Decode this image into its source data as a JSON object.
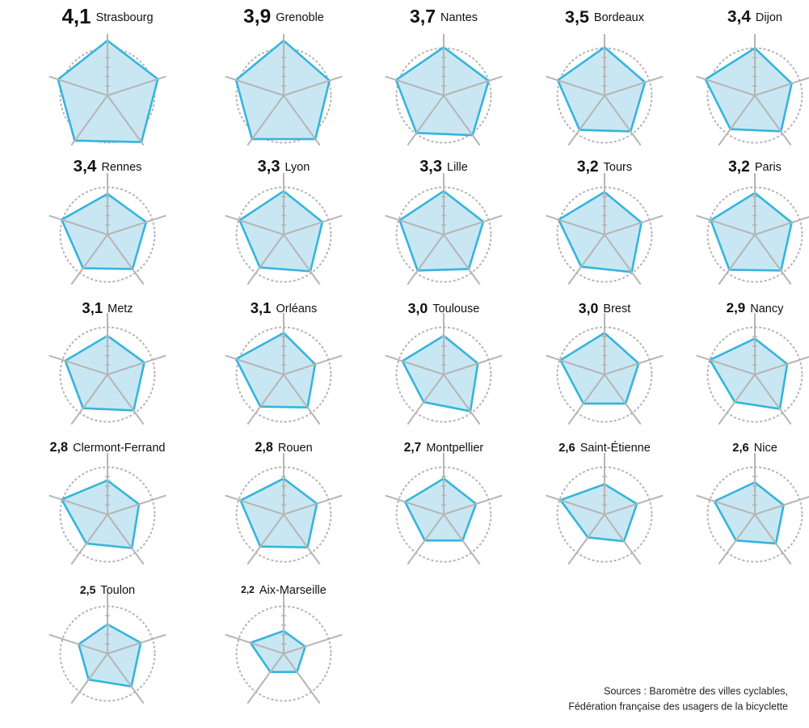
{
  "chart_data": [
    {
      "type": "radar",
      "score": {
        "value": 4.1,
        "label": "4,1"
      },
      "title": "Strasbourg",
      "values": [
        5.8,
        5.6,
        6.1,
        5.9,
        5.5
      ],
      "color": "#35b5dc",
      "fill": "#c9e7f3",
      "rlim": [
        0,
        6.5
      ],
      "rticks": [
        1,
        2,
        3,
        4,
        5
      ]
    },
    {
      "type": "radar",
      "score": {
        "value": 3.9,
        "label": "3,9"
      },
      "title": "Grenoble",
      "values": [
        5.8,
        5.1,
        5.7,
        5.7,
        5.3
      ],
      "color": "#35b5dc",
      "fill": "#c9e7f3",
      "rlim": [
        0,
        6.5
      ],
      "rticks": [
        1,
        2,
        3,
        4,
        5
      ]
    },
    {
      "type": "radar",
      "score": {
        "value": 3.7,
        "label": "3,7"
      },
      "title": "Nantes",
      "values": [
        5.1,
        5.0,
        5.2,
        4.9,
        5.3
      ],
      "color": "#35b5dc",
      "fill": "#c9e7f3",
      "rlim": [
        0,
        6.5
      ],
      "rticks": [
        1,
        2,
        3,
        4,
        5
      ]
    },
    {
      "type": "radar",
      "score": {
        "value": 3.5,
        "label": "3,5"
      },
      "title": "Bordeaux",
      "values": [
        5.1,
        4.5,
        4.7,
        4.5,
        5.2
      ],
      "color": "#35b5dc",
      "fill": "#c9e7f3",
      "rlim": [
        0,
        6.5
      ],
      "rticks": [
        1,
        2,
        3,
        4,
        5
      ]
    },
    {
      "type": "radar",
      "score": {
        "value": 3.4,
        "label": "3,4"
      },
      "title": "Dijon",
      "values": [
        5.0,
        4.1,
        4.7,
        4.4,
        5.5
      ],
      "color": "#35b5dc",
      "fill": "#c9e7f3",
      "rlim": [
        0,
        6.5
      ],
      "rticks": [
        1,
        2,
        3,
        4,
        5
      ]
    },
    {
      "type": "radar",
      "score": {
        "value": 3.4,
        "label": "3,4"
      },
      "title": "Rennes",
      "values": [
        4.3,
        4.3,
        4.5,
        4.4,
        5.1
      ],
      "color": "#35b5dc",
      "fill": "#c9e7f3",
      "rlim": [
        0,
        6.5
      ],
      "rticks": [
        1,
        2,
        3,
        4,
        5
      ]
    },
    {
      "type": "radar",
      "score": {
        "value": 3.3,
        "label": "3,3"
      },
      "title": "Lyon",
      "values": [
        4.6,
        4.3,
        4.8,
        4.3,
        4.9
      ],
      "color": "#35b5dc",
      "fill": "#c9e7f3",
      "rlim": [
        0,
        6.5
      ],
      "rticks": [
        1,
        2,
        3,
        4,
        5
      ]
    },
    {
      "type": "radar",
      "score": {
        "value": 3.3,
        "label": "3,3"
      },
      "title": "Lille",
      "values": [
        4.6,
        4.4,
        4.5,
        4.7,
        4.9
      ],
      "color": "#35b5dc",
      "fill": "#c9e7f3",
      "rlim": [
        0,
        6.5
      ],
      "rticks": [
        1,
        2,
        3,
        4,
        5
      ]
    },
    {
      "type": "radar",
      "score": {
        "value": 3.2,
        "label": "3,2"
      },
      "title": "Tours",
      "values": [
        4.5,
        4.1,
        4.9,
        4.2,
        5.1
      ],
      "color": "#35b5dc",
      "fill": "#c9e7f3",
      "rlim": [
        0,
        6.5
      ],
      "rticks": [
        1,
        2,
        3,
        4,
        5
      ]
    },
    {
      "type": "radar",
      "score": {
        "value": 3.2,
        "label": "3,2"
      },
      "title": "Paris",
      "values": [
        4.4,
        4.1,
        4.7,
        4.6,
        4.9
      ],
      "color": "#35b5dc",
      "fill": "#c9e7f3",
      "rlim": [
        0,
        6.5
      ],
      "rticks": [
        1,
        2,
        3,
        4,
        5
      ]
    },
    {
      "type": "radar",
      "score": {
        "value": 3.1,
        "label": "3,1"
      },
      "title": "Metz",
      "values": [
        4.1,
        4.1,
        4.7,
        4.4,
        4.7
      ],
      "color": "#35b5dc",
      "fill": "#c9e7f3",
      "rlim": [
        0,
        6.5
      ],
      "rticks": [
        1,
        2,
        3,
        4,
        5
      ]
    },
    {
      "type": "radar",
      "score": {
        "value": 3.1,
        "label": "3,1"
      },
      "title": "Orléans",
      "values": [
        4.4,
        3.5,
        4.3,
        4.2,
        5.3
      ],
      "color": "#35b5dc",
      "fill": "#c9e7f3",
      "rlim": [
        0,
        6.5
      ],
      "rticks": [
        1,
        2,
        3,
        4,
        5
      ]
    },
    {
      "type": "radar",
      "score": {
        "value": 3.0,
        "label": "3,0"
      },
      "title": "Toulouse",
      "values": [
        4.1,
        3.8,
        4.8,
        3.6,
        4.6
      ],
      "color": "#35b5dc",
      "fill": "#c9e7f3",
      "rlim": [
        0,
        6.5
      ],
      "rticks": [
        1,
        2,
        3,
        4,
        5
      ]
    },
    {
      "type": "radar",
      "score": {
        "value": 3.0,
        "label": "3,0"
      },
      "title": "Brest",
      "values": [
        4.4,
        3.8,
        3.8,
        3.8,
        4.9
      ],
      "color": "#35b5dc",
      "fill": "#c9e7f3",
      "rlim": [
        0,
        6.5
      ],
      "rticks": [
        1,
        2,
        3,
        4,
        5
      ]
    },
    {
      "type": "radar",
      "score": {
        "value": 2.9,
        "label": "2,9"
      },
      "title": "Nancy",
      "values": [
        3.8,
        3.6,
        4.5,
        3.6,
        5.0
      ],
      "color": "#35b5dc",
      "fill": "#c9e7f3",
      "rlim": [
        0,
        6.5
      ],
      "rticks": [
        1,
        2,
        3,
        4,
        5
      ]
    },
    {
      "type": "radar",
      "score": {
        "value": 2.8,
        "label": "2,8"
      },
      "title": "Clermont-Ferrand",
      "values": [
        3.6,
        3.5,
        4.4,
        3.8,
        5.1
      ],
      "color": "#35b5dc",
      "fill": "#c9e7f3",
      "rlim": [
        0,
        6.5
      ],
      "rticks": [
        1,
        2,
        3,
        4,
        5
      ]
    },
    {
      "type": "radar",
      "score": {
        "value": 2.8,
        "label": "2,8"
      },
      "title": "Rouen",
      "values": [
        3.8,
        3.7,
        4.3,
        4.2,
        4.8
      ],
      "color": "#35b5dc",
      "fill": "#c9e7f3",
      "rlim": [
        0,
        6.5
      ],
      "rticks": [
        1,
        2,
        3,
        4,
        5
      ]
    },
    {
      "type": "radar",
      "score": {
        "value": 2.7,
        "label": "2,7"
      },
      "title": "Montpellier",
      "values": [
        3.8,
        3.6,
        3.4,
        3.4,
        4.3
      ],
      "color": "#35b5dc",
      "fill": "#c9e7f3",
      "rlim": [
        0,
        6.5
      ],
      "rticks": [
        1,
        2,
        3,
        4,
        5
      ]
    },
    {
      "type": "radar",
      "score": {
        "value": 2.6,
        "label": "2,6"
      },
      "title": "Saint-Étienne",
      "values": [
        3.2,
        3.6,
        3.5,
        3.0,
        4.9
      ],
      "color": "#35b5dc",
      "fill": "#c9e7f3",
      "rlim": [
        0,
        6.5
      ],
      "rticks": [
        1,
        2,
        3,
        4,
        5
      ]
    },
    {
      "type": "radar",
      "score": {
        "value": 2.6,
        "label": "2,6"
      },
      "title": "Nice",
      "values": [
        3.4,
        3.2,
        3.8,
        3.4,
        4.5
      ],
      "color": "#35b5dc",
      "fill": "#c9e7f3",
      "rlim": [
        0,
        6.5
      ],
      "rticks": [
        1,
        2,
        3,
        4,
        5
      ]
    },
    {
      "type": "radar",
      "score": {
        "value": 2.5,
        "label": "2,5"
      },
      "title": "Toulon",
      "values": [
        3.1,
        3.7,
        4.3,
        3.4,
        3.2
      ],
      "color": "#35b5dc",
      "fill": "#c9e7f3",
      "rlim": [
        0,
        6.5
      ],
      "rticks": [
        1,
        2,
        3,
        4,
        5
      ]
    },
    {
      "type": "radar",
      "score": {
        "value": 2.2,
        "label": "2,2"
      },
      "title": "Aix-Marseille",
      "values": [
        2.4,
        2.4,
        2.4,
        2.4,
        3.7
      ],
      "color": "#35b5dc",
      "fill": "#c9e7f3",
      "rlim": [
        0,
        6.5
      ],
      "rticks": [
        1,
        2,
        3,
        4,
        5
      ]
    }
  ],
  "source": [
    "Sources : Baromètre des villes cyclables,",
    "Fédération française des usagers de la bicyclette"
  ]
}
